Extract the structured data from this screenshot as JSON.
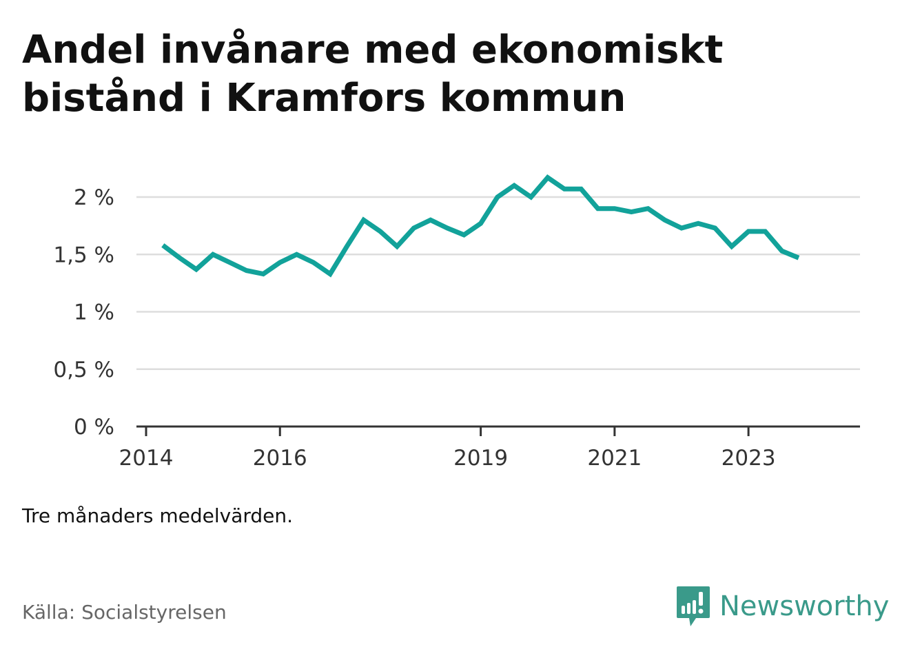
{
  "title": "Andel invånare med ekonomiskt bistånd i Kramfors kommun",
  "note": "Tre månaders medelvärden.",
  "source": "Källa: Socialstyrelsen",
  "brand": {
    "name": "Newsworthy",
    "icon": "newsworthy-logo-icon",
    "color": "#3a9a8a"
  },
  "chart_data": {
    "type": "line",
    "line_color": "#12a29a",
    "grid": true,
    "ylim": [
      0,
      2.0
    ],
    "yticks": [
      {
        "value": 0,
        "label": "0 %"
      },
      {
        "value": 0.5,
        "label": "0,5 %"
      },
      {
        "value": 1.0,
        "label": "1 %"
      },
      {
        "value": 1.5,
        "label": "1,5 %"
      },
      {
        "value": 2.0,
        "label": "2 %"
      }
    ],
    "xlim": [
      "2014-01",
      "2024-09"
    ],
    "xticks": [
      {
        "value": "2014-01",
        "label": "2014"
      },
      {
        "value": "2016-01",
        "label": "2016"
      },
      {
        "value": "2019-01",
        "label": "2019"
      },
      {
        "value": "2021-01",
        "label": "2021"
      },
      {
        "value": "2023-01",
        "label": "2023"
      }
    ],
    "series": [
      {
        "points": [
          {
            "x": "2014-04",
            "y": 1.58
          },
          {
            "x": "2014-07",
            "y": 1.47
          },
          {
            "x": "2014-10",
            "y": 1.37
          },
          {
            "x": "2015-01",
            "y": 1.5
          },
          {
            "x": "2015-04",
            "y": 1.43
          },
          {
            "x": "2015-07",
            "y": 1.36
          },
          {
            "x": "2015-10",
            "y": 1.33
          },
          {
            "x": "2016-01",
            "y": 1.43
          },
          {
            "x": "2016-04",
            "y": 1.5
          },
          {
            "x": "2016-07",
            "y": 1.43
          },
          {
            "x": "2016-10",
            "y": 1.33
          },
          {
            "x": "2017-01",
            "y": 1.57
          },
          {
            "x": "2017-04",
            "y": 1.8
          },
          {
            "x": "2017-07",
            "y": 1.7
          },
          {
            "x": "2017-10",
            "y": 1.57
          },
          {
            "x": "2018-01",
            "y": 1.73
          },
          {
            "x": "2018-04",
            "y": 1.8
          },
          {
            "x": "2018-07",
            "y": 1.73
          },
          {
            "x": "2018-10",
            "y": 1.67
          },
          {
            "x": "2019-01",
            "y": 1.77
          },
          {
            "x": "2019-04",
            "y": 2.0
          },
          {
            "x": "2019-07",
            "y": 2.1
          },
          {
            "x": "2019-10",
            "y": 2.0
          },
          {
            "x": "2020-01",
            "y": 2.17
          },
          {
            "x": "2020-04",
            "y": 2.07
          },
          {
            "x": "2020-07",
            "y": 2.07
          },
          {
            "x": "2020-10",
            "y": 1.9
          },
          {
            "x": "2021-01",
            "y": 1.9
          },
          {
            "x": "2021-04",
            "y": 1.87
          },
          {
            "x": "2021-07",
            "y": 1.9
          },
          {
            "x": "2021-10",
            "y": 1.8
          },
          {
            "x": "2022-01",
            "y": 1.73
          },
          {
            "x": "2022-04",
            "y": 1.77
          },
          {
            "x": "2022-07",
            "y": 1.73
          },
          {
            "x": "2022-10",
            "y": 1.57
          },
          {
            "x": "2023-01",
            "y": 1.7
          },
          {
            "x": "2023-04",
            "y": 1.7
          },
          {
            "x": "2023-07",
            "y": 1.53
          },
          {
            "x": "2023-10",
            "y": 1.47
          }
        ]
      }
    ]
  }
}
